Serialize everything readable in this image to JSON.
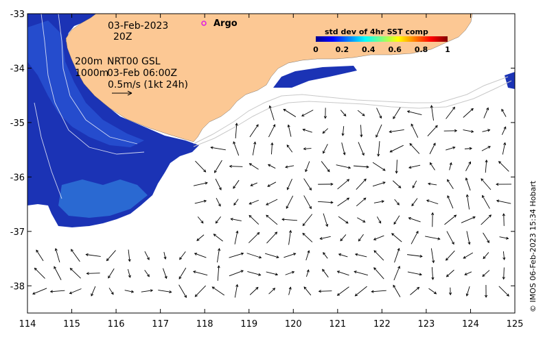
{
  "map": {
    "lon_range": [
      114,
      125
    ],
    "lat_range": [
      -38.5,
      -33
    ],
    "lon_ticks": [
      "114",
      "115",
      "116",
      "117",
      "118",
      "119",
      "120",
      "121",
      "122",
      "123",
      "124",
      "125"
    ],
    "lat_ticks": [
      "-33",
      "-34",
      "-35",
      "-36",
      "-37",
      "-38"
    ],
    "colors": {
      "land": "#fcc894",
      "ocean": "#ffffff",
      "sst_low": "#1a2fb0",
      "sst_mid": "#1f6ee8",
      "arrow": "#000000",
      "contour": "#bfbfbf",
      "argo": "#e020e0"
    }
  },
  "annotations": {
    "date": "03-Feb-2023",
    "time": "20Z",
    "depth_200": "200m",
    "depth_1000": "1000m",
    "product": "NRT00 GSL",
    "product_time": "03-Feb 06:00Z",
    "scale": "0.5m/s (1kt 24h)"
  },
  "argo": {
    "label": "Argo"
  },
  "legend": {
    "title": "std dev of 4hr SST comp",
    "ticks": [
      "0",
      "0.2",
      "0.4",
      "0.6",
      "0.8",
      "1"
    ]
  },
  "credit": "© IMOS 06-Feb-2023 15:34 Hobart"
}
